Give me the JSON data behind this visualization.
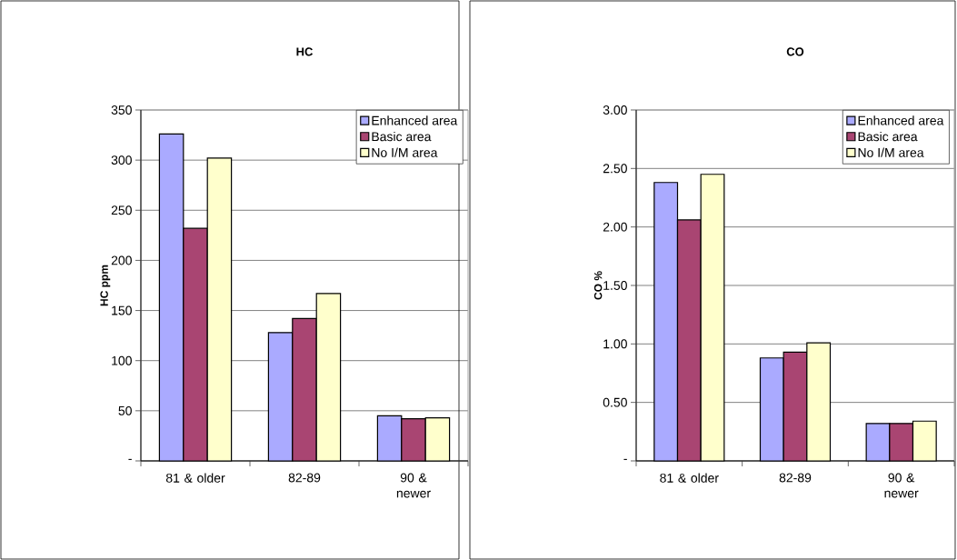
{
  "chart_data": [
    {
      "type": "bar",
      "title": "HC",
      "ylabel": "HC ppm",
      "categories": [
        "81 & older",
        "82-89",
        "90 & newer"
      ],
      "series": [
        {
          "name": "Enhanced area",
          "color": "#aaaaff",
          "values": [
            326,
            128,
            45
          ]
        },
        {
          "name": "Basic area",
          "color": "#a94572",
          "values": [
            232,
            142,
            42
          ]
        },
        {
          "name": "No I/M area",
          "color": "#ffffcc",
          "values": [
            302,
            167,
            43
          ]
        }
      ],
      "ylim": [
        0,
        350
      ],
      "yticks": [
        {
          "value": 0,
          "label": "-"
        },
        50,
        100,
        150,
        200,
        250,
        300,
        350
      ],
      "grid": "y",
      "legend": "top right"
    },
    {
      "type": "bar",
      "title": "CO",
      "ylabel": "CO %",
      "categories": [
        "81 & older",
        "82-89",
        "90 & newer"
      ],
      "series": [
        {
          "name": "Enhanced area",
          "color": "#aaaaff",
          "values": [
            2.38,
            0.88,
            0.32
          ]
        },
        {
          "name": "Basic area",
          "color": "#a94572",
          "values": [
            2.06,
            0.93,
            0.32
          ]
        },
        {
          "name": "No I/M area",
          "color": "#ffffcc",
          "values": [
            2.45,
            1.01,
            0.34
          ]
        }
      ],
      "ylim": [
        0,
        3
      ],
      "yticks": [
        {
          "value": 0,
          "label": "-"
        },
        {
          "value": 0.5,
          "label": "0.50"
        },
        {
          "value": 1,
          "label": "1.00"
        },
        {
          "value": 1.5,
          "label": "1.50"
        },
        {
          "value": 2,
          "label": "2.00"
        },
        {
          "value": 2.5,
          "label": "2.50"
        },
        {
          "value": 3,
          "label": "3.00"
        }
      ],
      "grid": "y",
      "legend": "top right"
    }
  ]
}
